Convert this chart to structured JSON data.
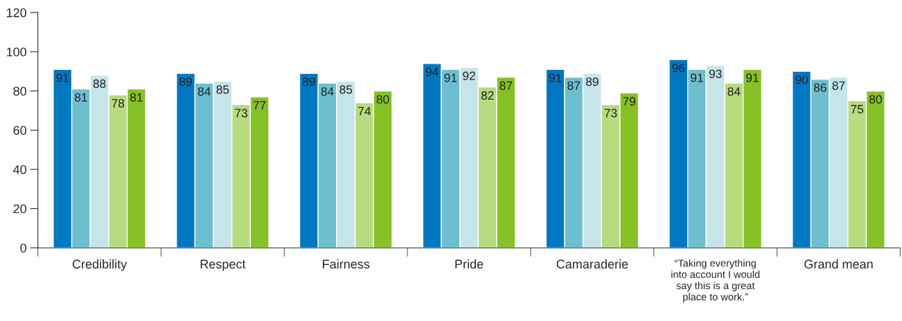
{
  "chart_data": {
    "type": "bar",
    "categories": [
      "Credibility",
      "Respect",
      "Fairness",
      "Pride",
      "Camaraderie",
      "“Taking everything\ninto account I would\nsay this is a great\nplace to work.”",
      "Grand mean"
    ],
    "series": [
      {
        "color": "#0078c1",
        "values": [
          91,
          89,
          89,
          94,
          91,
          96,
          90
        ]
      },
      {
        "color": "#6dbfcf",
        "values": [
          81,
          84,
          84,
          91,
          87,
          91,
          86
        ]
      },
      {
        "color": "#c5e5ea",
        "values": [
          88,
          85,
          85,
          92,
          89,
          93,
          87
        ]
      },
      {
        "color": "#b7db7f",
        "values": [
          78,
          73,
          74,
          82,
          73,
          84,
          75
        ]
      },
      {
        "color": "#86c127",
        "values": [
          81,
          77,
          80,
          87,
          79,
          91,
          80
        ]
      }
    ],
    "ylim": [
      0,
      120
    ],
    "yticks": [
      0,
      20,
      40,
      60,
      80,
      100,
      120
    ],
    "data_labels": true,
    "grid": false,
    "legend": false
  }
}
